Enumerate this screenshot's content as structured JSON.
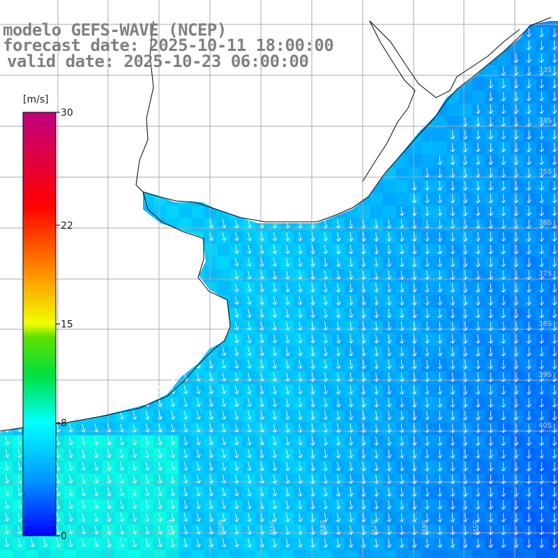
{
  "title": {
    "model": "modelo GEFS-WAVE (NCEP)",
    "forecast": "forecast date: 2025-10-11 18:00:00",
    "valid": "valid date: 2025-10-23 06:00:00"
  },
  "colorbar": {
    "unit_label": "[m/s]",
    "ticks": [
      "30",
      "22",
      "15",
      "8",
      "0"
    ],
    "tick_values": [
      30,
      22,
      15,
      8,
      0
    ],
    "min": 0,
    "max": 30,
    "colors": [
      "#0000ff",
      "#0096ff",
      "#00ffff",
      "#00ff00",
      "#ffff00",
      "#ff8000",
      "#ff0000",
      "#c0007f"
    ]
  },
  "map": {
    "lat_labels": [
      "33S",
      "34S",
      "35S",
      "36S",
      "37S",
      "38S",
      "39S",
      "40S"
    ],
    "lon_labels": [
      "61W",
      "60W",
      "59W",
      "58W",
      "57W",
      "56W",
      "55W"
    ],
    "land_color": "#ffffff",
    "coast_color": "#000000",
    "grid_color": "#a0a0a0",
    "arrow_color": "#ffffff",
    "wind_direction": "predominantly from the north-northeast toward the south-southwest"
  }
}
